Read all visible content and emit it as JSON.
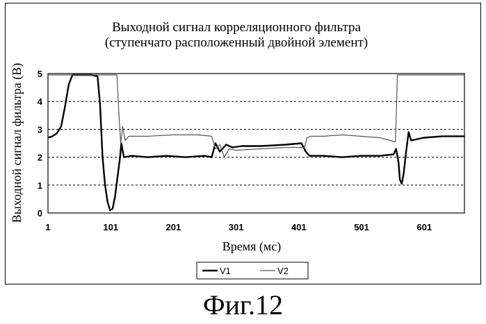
{
  "caption": "Фиг.12",
  "colors": {
    "v1": "#000000",
    "v2": "#555555",
    "grid": "#000000",
    "background": "#ffffff"
  },
  "chart_data": {
    "type": "line",
    "title": "Выходной сигнал корреляционного фильтра",
    "subtitle": "(ступенчато расположенный двойной элемент)",
    "xlabel": "Время (мс)",
    "ylabel": "Выходной сигнал фильтра (В)",
    "xlim": [
      1,
      665
    ],
    "ylim": [
      0,
      5
    ],
    "xticks": [
      "1",
      "101",
      "201",
      "301",
      "401",
      "501",
      "601"
    ],
    "yticks": [
      "0",
      "1",
      "2",
      "3",
      "4",
      "5"
    ],
    "grid": "horizontal dashed",
    "legend_position": "bottom-center",
    "series": [
      {
        "name": "V1",
        "x": [
          1,
          8,
          15,
          22,
          28,
          34,
          40,
          48,
          58,
          70,
          80,
          84,
          88,
          92,
          96,
          100,
          104,
          108,
          112,
          116,
          118,
          122,
          135,
          160,
          190,
          220,
          250,
          262,
          268,
          275,
          285,
          295,
          310,
          340,
          380,
          405,
          412,
          418,
          440,
          470,
          500,
          530,
          552,
          556,
          560,
          562,
          565,
          568,
          572,
          576,
          580,
          600,
          630,
          665
        ],
        "y": [
          2.7,
          2.75,
          2.85,
          3.1,
          3.8,
          4.6,
          4.95,
          4.95,
          4.95,
          4.95,
          4.9,
          3.9,
          2.0,
          1.0,
          0.4,
          0.1,
          0.15,
          0.6,
          1.3,
          2.0,
          2.5,
          2.0,
          2.05,
          2.0,
          2.05,
          2.0,
          2.05,
          2.0,
          2.5,
          2.2,
          2.45,
          2.35,
          2.4,
          2.4,
          2.45,
          2.5,
          2.2,
          2.05,
          2.05,
          2.0,
          2.05,
          2.05,
          2.1,
          2.3,
          1.8,
          1.2,
          1.05,
          1.4,
          2.2,
          2.9,
          2.6,
          2.7,
          2.75,
          2.75
        ]
      },
      {
        "name": "V2",
        "x": [
          1,
          10,
          20,
          30,
          40,
          50,
          60,
          80,
          110,
          111,
          114,
          117,
          120,
          124,
          130,
          160,
          200,
          240,
          262,
          268,
          275,
          282,
          290,
          300,
          340,
          380,
          410,
          414,
          420,
          440,
          470,
          500,
          530,
          555,
          557,
          558,
          600,
          665
        ],
        "y": [
          4.95,
          4.95,
          4.95,
          4.95,
          4.95,
          4.95,
          4.95,
          4.95,
          4.95,
          4.95,
          3.6,
          2.5,
          3.1,
          2.6,
          2.75,
          2.75,
          2.8,
          2.8,
          2.75,
          2.3,
          2.45,
          2.0,
          2.3,
          2.25,
          2.3,
          2.35,
          2.35,
          2.7,
          2.75,
          2.75,
          2.8,
          2.75,
          2.7,
          2.55,
          4.1,
          4.95,
          4.95,
          4.95
        ]
      }
    ]
  }
}
